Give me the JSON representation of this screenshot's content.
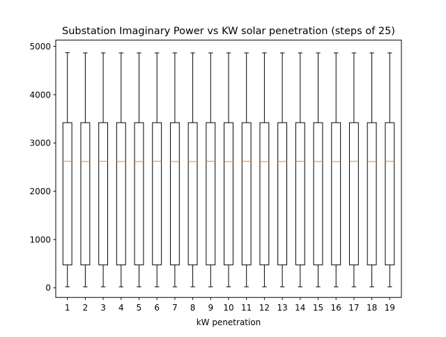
{
  "chart_data": {
    "type": "box",
    "title": "Substation Imaginary Power vs KW solar penetration (steps of 25)",
    "xlabel": "kW penetration",
    "ylabel": "",
    "categories": [
      "1",
      "2",
      "3",
      "4",
      "5",
      "6",
      "7",
      "8",
      "9",
      "10",
      "11",
      "12",
      "13",
      "14",
      "15",
      "16",
      "17",
      "18",
      "19"
    ],
    "ylim": [
      -200,
      5130
    ],
    "yticks": [
      0,
      1000,
      2000,
      3000,
      4000,
      5000
    ],
    "boxes": [
      {
        "category": "1",
        "whisker_low": 20,
        "q1": 475,
        "median": 2620,
        "q3": 3420,
        "whisker_high": 4870
      },
      {
        "category": "2",
        "whisker_low": 20,
        "q1": 475,
        "median": 2615,
        "q3": 3420,
        "whisker_high": 4865
      },
      {
        "category": "3",
        "whisker_low": 20,
        "q1": 475,
        "median": 2620,
        "q3": 3420,
        "whisker_high": 4865
      },
      {
        "category": "4",
        "whisker_low": 20,
        "q1": 475,
        "median": 2615,
        "q3": 3420,
        "whisker_high": 4865
      },
      {
        "category": "5",
        "whisker_low": 20,
        "q1": 475,
        "median": 2615,
        "q3": 3420,
        "whisker_high": 4865
      },
      {
        "category": "6",
        "whisker_low": 20,
        "q1": 475,
        "median": 2620,
        "q3": 3420,
        "whisker_high": 4865
      },
      {
        "category": "7",
        "whisker_low": 20,
        "q1": 475,
        "median": 2615,
        "q3": 3420,
        "whisker_high": 4865
      },
      {
        "category": "8",
        "whisker_low": 20,
        "q1": 475,
        "median": 2615,
        "q3": 3420,
        "whisker_high": 4865
      },
      {
        "category": "9",
        "whisker_low": 20,
        "q1": 475,
        "median": 2620,
        "q3": 3420,
        "whisker_high": 4865
      },
      {
        "category": "10",
        "whisker_low": 20,
        "q1": 475,
        "median": 2615,
        "q3": 3420,
        "whisker_high": 4865
      },
      {
        "category": "11",
        "whisker_low": 20,
        "q1": 475,
        "median": 2620,
        "q3": 3420,
        "whisker_high": 4865
      },
      {
        "category": "12",
        "whisker_low": 20,
        "q1": 475,
        "median": 2615,
        "q3": 3420,
        "whisker_high": 4865
      },
      {
        "category": "13",
        "whisker_low": 20,
        "q1": 475,
        "median": 2615,
        "q3": 3420,
        "whisker_high": 4865
      },
      {
        "category": "14",
        "whisker_low": 20,
        "q1": 475,
        "median": 2620,
        "q3": 3420,
        "whisker_high": 4865
      },
      {
        "category": "15",
        "whisker_low": 20,
        "q1": 475,
        "median": 2615,
        "q3": 3420,
        "whisker_high": 4865
      },
      {
        "category": "16",
        "whisker_low": 20,
        "q1": 475,
        "median": 2615,
        "q3": 3420,
        "whisker_high": 4865
      },
      {
        "category": "17",
        "whisker_low": 20,
        "q1": 475,
        "median": 2620,
        "q3": 3420,
        "whisker_high": 4865
      },
      {
        "category": "18",
        "whisker_low": 20,
        "q1": 475,
        "median": 2615,
        "q3": 3420,
        "whisker_high": 4865
      },
      {
        "category": "19",
        "whisker_low": 20,
        "q1": 475,
        "median": 2620,
        "q3": 3420,
        "whisker_high": 4865
      }
    ],
    "colors": {
      "box": "#000000",
      "median": "#ff7f0e",
      "axes": "#000000",
      "background": "#ffffff"
    },
    "grid": false,
    "legend": "none"
  }
}
